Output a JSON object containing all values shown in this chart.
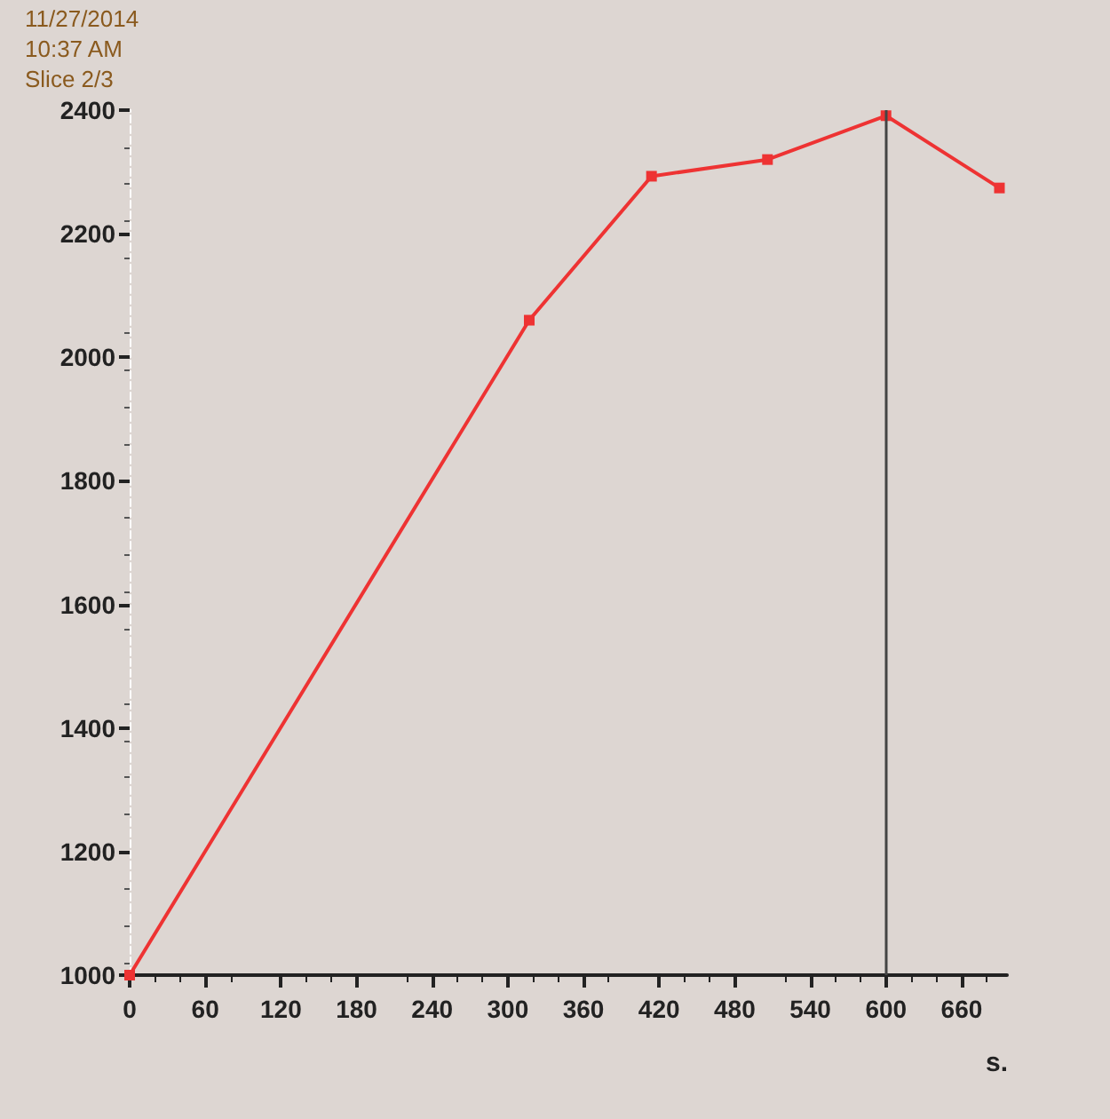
{
  "chart_data": {
    "type": "line",
    "xlabel": "s.",
    "x": [
      0,
      317,
      414,
      506,
      600,
      690
    ],
    "series": [
      {
        "color": "#ee3333",
        "values": [
          1000,
          2060,
          2293,
          2320,
          2391,
          2274
        ]
      }
    ],
    "xlim": [
      0,
      696
    ],
    "xticks": [
      0,
      60,
      120,
      180,
      240,
      300,
      360,
      420,
      480,
      540,
      600,
      660
    ],
    "ylim": [
      1000,
      2400
    ],
    "yticks": [
      1000,
      1200,
      1400,
      1600,
      1800,
      2000,
      2200,
      2400
    ],
    "ref_lines": [
      {
        "axis": "x",
        "value": 600,
        "color": "#444444"
      }
    ],
    "annotations": [
      "11/27/2014",
      "10:37 AM",
      "Slice 2/3"
    ],
    "marker": "square",
    "line_style": "solid"
  }
}
